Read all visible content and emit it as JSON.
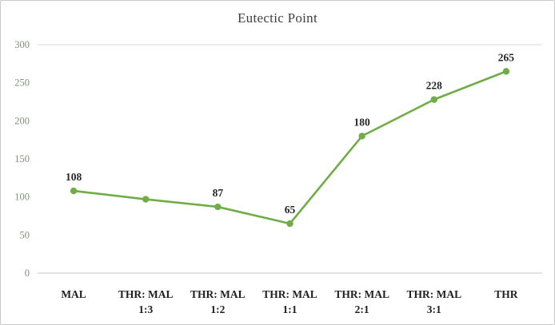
{
  "title": "Eutectic Point",
  "chart_data": {
    "type": "line",
    "title": "Eutectic Point",
    "categories": [
      [
        "MAL"
      ],
      [
        "THR: MAL",
        "1:3"
      ],
      [
        "THR: MAL",
        "1:2"
      ],
      [
        "THR: MAL",
        "1:1"
      ],
      [
        "THR: MAL",
        "2:1"
      ],
      [
        "THR: MAL",
        "3:1"
      ],
      [
        "THR"
      ]
    ],
    "values": [
      108,
      97,
      87,
      65,
      180,
      228,
      265
    ],
    "data_labels": [
      "108",
      "",
      "87",
      "65",
      "180",
      "228",
      "265"
    ],
    "ylim": [
      0,
      300
    ],
    "yticks": [
      0,
      50,
      100,
      150,
      200,
      250,
      300
    ],
    "xlabel": "",
    "ylabel": "",
    "legend_position": "none",
    "grid": "top line and baseline only"
  },
  "colors": {
    "line": "#70AD47",
    "marker": "#70AD47",
    "ytick_text": "#7e9470",
    "xtick_text": "#1f1f1f",
    "data_label_text": "#262626",
    "gridline": "#d9d9d9",
    "axis_line": "#c6c6c6"
  }
}
